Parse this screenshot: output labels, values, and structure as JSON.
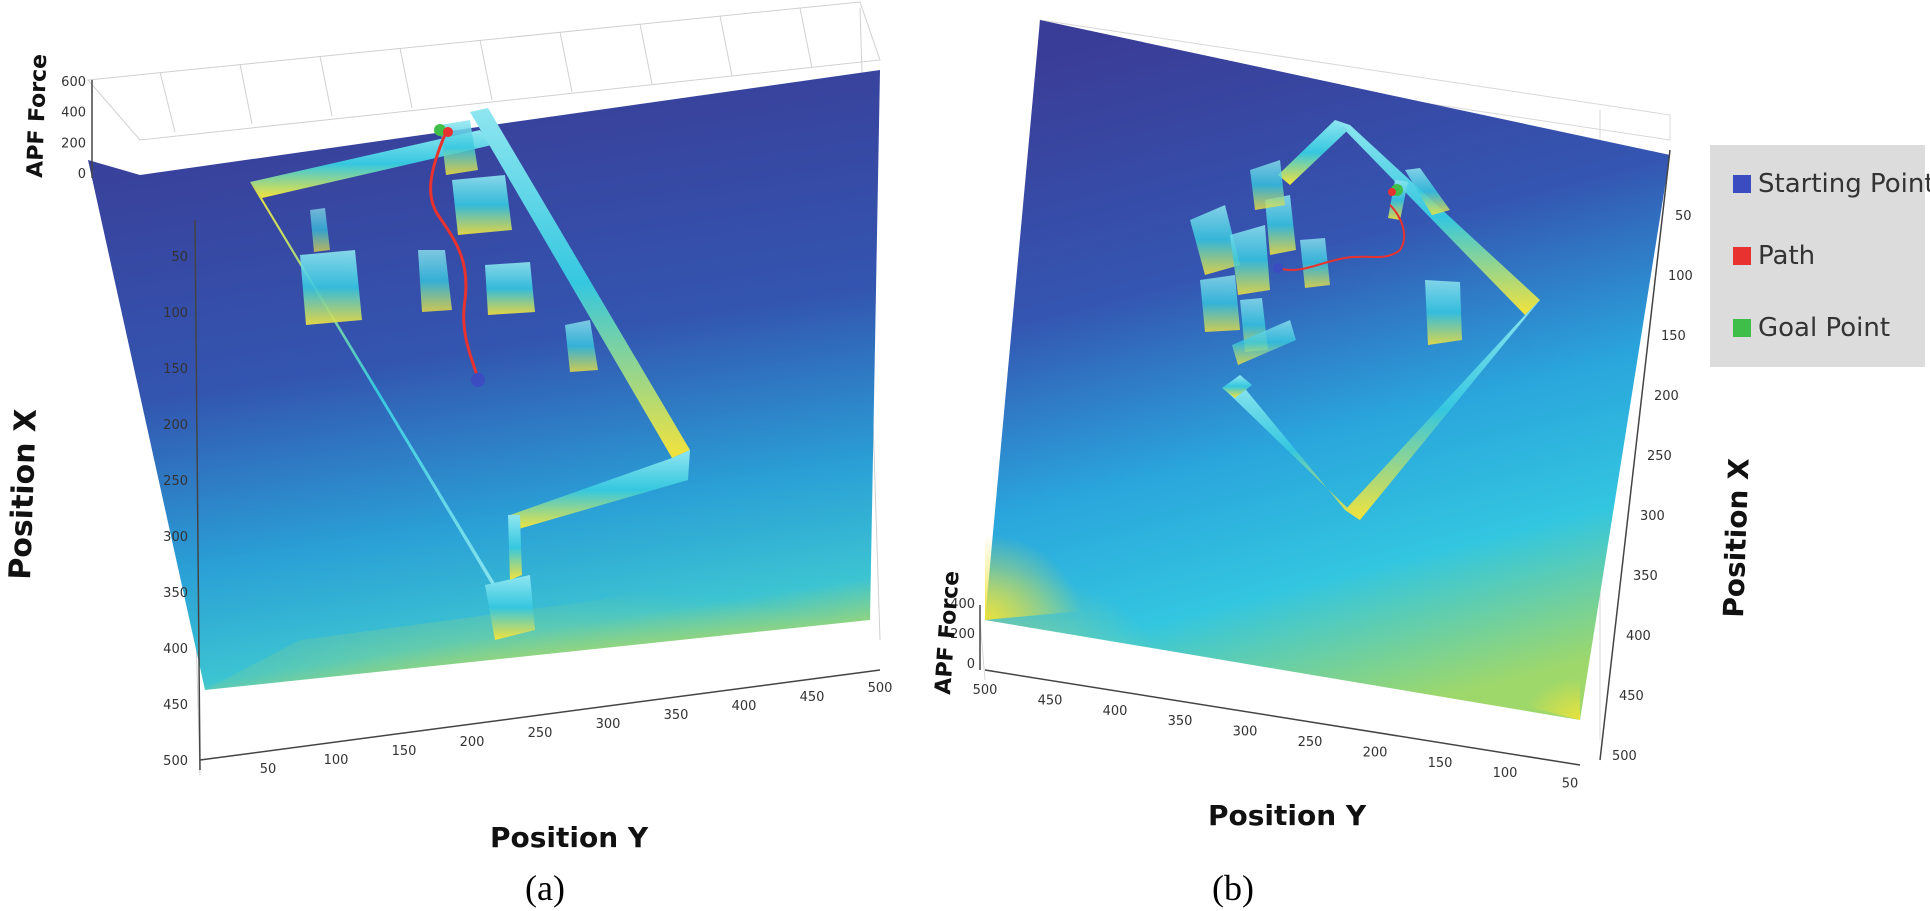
{
  "panels": [
    {
      "caption": "(a)"
    },
    {
      "caption": "(b)"
    }
  ],
  "legend": {
    "items": [
      {
        "label": "Starting Point",
        "color": "#3b4cc0"
      },
      {
        "label": "Path",
        "color": "#e8322f"
      },
      {
        "label": "Goal Point",
        "color": "#3fbf4a"
      }
    ]
  },
  "chart_data": [
    {
      "type": "surface",
      "panel": "(a)",
      "xlabel": "Position Y",
      "ylabel": "Position X",
      "zlabel": "APF Force",
      "x_ticks": [
        50,
        100,
        150,
        200,
        250,
        300,
        350,
        400,
        450,
        500
      ],
      "y_ticks": [
        50,
        100,
        150,
        200,
        250,
        300,
        350,
        400,
        450,
        500
      ],
      "z_ticks": [
        0,
        200,
        400,
        600
      ],
      "xlim": [
        0,
        500
      ],
      "ylim": [
        0,
        500
      ],
      "zlim": [
        0,
        600
      ],
      "colormap": [
        "#3b3f9a",
        "#2f7fd0",
        "#21b8e0",
        "#5fd3c8",
        "#f5e43a"
      ],
      "grid": true
    },
    {
      "type": "surface",
      "panel": "(b)",
      "xlabel": "Position Y",
      "ylabel": "Position X",
      "zlabel": "APF Force",
      "x_ticks": [
        500,
        450,
        400,
        350,
        300,
        250,
        200,
        150,
        100,
        50
      ],
      "y_ticks": [
        50,
        100,
        150,
        200,
        250,
        300,
        350,
        400,
        450,
        500
      ],
      "z_ticks": [
        0,
        200,
        400
      ],
      "xlim": [
        0,
        500
      ],
      "ylim": [
        0,
        500
      ],
      "zlim": [
        0,
        400
      ],
      "colormap": [
        "#3b3f9a",
        "#2f7fd0",
        "#21b8e0",
        "#5fd3c8",
        "#f5e43a"
      ],
      "grid": true,
      "legend_position": "right"
    }
  ]
}
